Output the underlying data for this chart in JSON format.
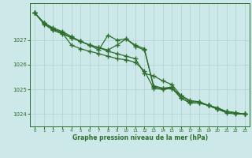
{
  "title": "Graphe pression niveau de la mer (hPa)",
  "background_color": "#cce8e8",
  "grid_color": "#b0d0d0",
  "line_color": "#2d6e2d",
  "marker_color": "#2d6e2d",
  "hours": [
    0,
    1,
    2,
    3,
    4,
    5,
    6,
    7,
    8,
    9,
    10,
    11,
    12,
    13,
    14,
    15,
    16,
    17,
    18,
    19,
    20,
    21,
    22,
    23
  ],
  "line1": [
    1028.1,
    1027.65,
    1027.4,
    1027.25,
    1027.1,
    1026.95,
    1026.8,
    1026.6,
    1027.2,
    1027.0,
    1027.05,
    1026.75,
    1026.6,
    1025.15,
    1025.05,
    1025.05,
    1024.65,
    1024.45,
    1024.45,
    1024.35,
    1024.2,
    1024.1,
    1024.05,
    1024.0
  ],
  "line2": [
    1028.1,
    1027.7,
    1027.45,
    1027.3,
    1027.1,
    1026.95,
    1026.8,
    1026.7,
    1026.55,
    1026.45,
    1026.35,
    1026.25,
    1025.65,
    1025.55,
    1025.35,
    1025.2,
    1024.75,
    1024.55,
    1024.5,
    1024.35,
    1024.25,
    1024.1,
    1024.05,
    1024.0
  ],
  "line3": [
    1028.1,
    1027.7,
    1027.45,
    1027.3,
    1026.8,
    1026.65,
    1026.55,
    1026.45,
    1026.35,
    1026.25,
    1026.2,
    1026.1,
    1025.75,
    1025.05,
    1025.0,
    1025.05,
    1024.75,
    1024.5,
    1024.5,
    1024.35,
    1024.25,
    1024.1,
    1024.05,
    1024.0
  ],
  "line4": [
    1028.1,
    1027.7,
    1027.5,
    1027.35,
    1027.15,
    1026.95,
    1026.8,
    1026.7,
    1026.6,
    1026.8,
    1027.05,
    1026.8,
    1026.65,
    1025.1,
    1025.05,
    1025.1,
    1024.65,
    1024.45,
    1024.45,
    1024.35,
    1024.2,
    1024.05,
    1024.0,
    1024.0
  ],
  "ylim_min": 1023.5,
  "ylim_max": 1028.5,
  "yticks": [
    1024,
    1025,
    1026,
    1027
  ],
  "xlim_min": -0.5,
  "xlim_max": 23.5,
  "xticks": [
    0,
    1,
    2,
    3,
    4,
    5,
    6,
    7,
    8,
    9,
    10,
    11,
    12,
    13,
    14,
    15,
    16,
    17,
    18,
    19,
    20,
    21,
    22,
    23
  ]
}
